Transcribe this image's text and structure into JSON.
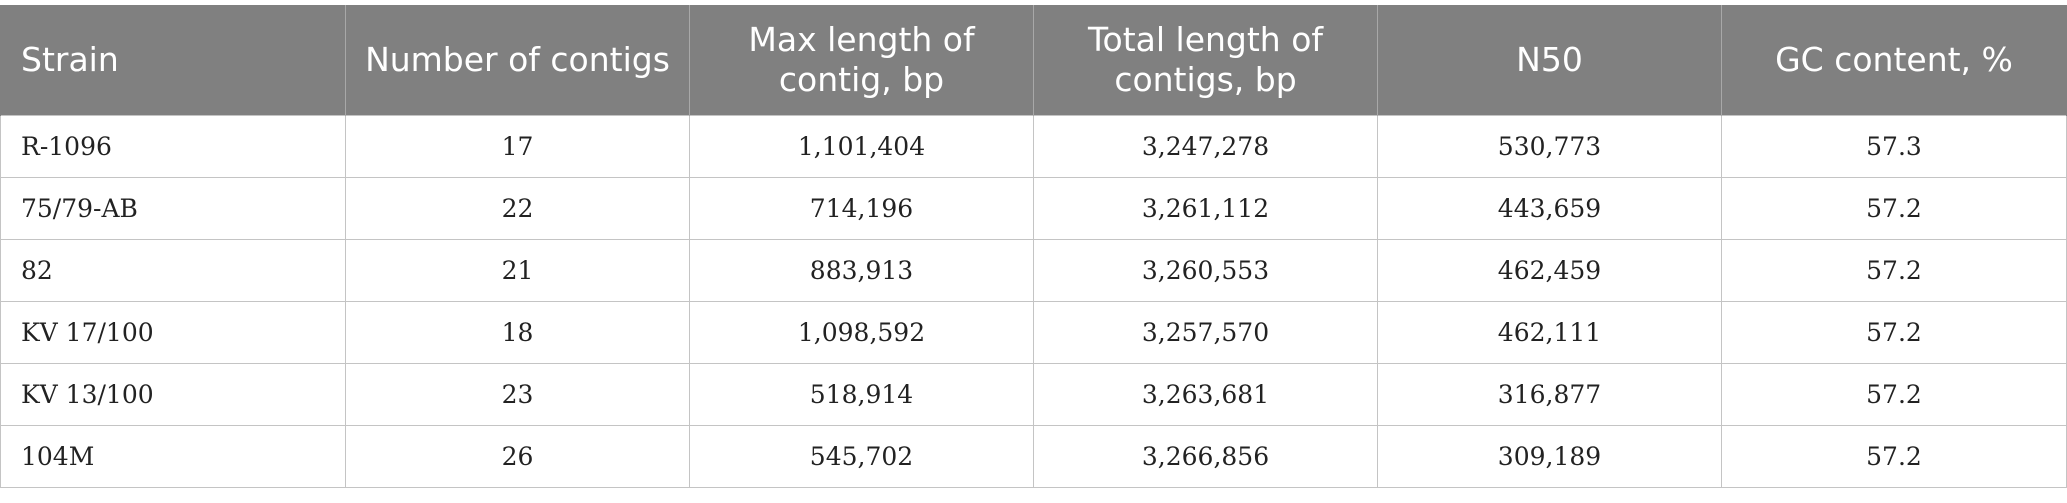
{
  "table": {
    "headers": [
      "Strain",
      "Number of contigs",
      "Max length of contig, bp",
      "Total length of contigs, bp",
      "N50",
      "GC content, %"
    ],
    "rows": [
      [
        "R-1096",
        "17",
        "1,101,404",
        "3,247,278",
        "530,773",
        "57.3"
      ],
      [
        "75/79-AB",
        "22",
        "714,196",
        "3,261,112",
        "443,659",
        "57.2"
      ],
      [
        "82",
        "21",
        "883,913",
        "3,260,553",
        "462,459",
        "57.2"
      ],
      [
        "KV 17/100",
        "18",
        "1,098,592",
        "3,257,570",
        "462,111",
        "57.2"
      ],
      [
        "KV 13/100",
        "23",
        "518,914",
        "3,263,681",
        "316,877",
        "57.2"
      ],
      [
        "104M",
        "26",
        "545,702",
        "3,266,856",
        "309,189",
        "57.2"
      ]
    ]
  },
  "colors": {
    "header_background": "#808080",
    "header_text": "#ffffff",
    "grid_line": "#c4c4c4"
  }
}
